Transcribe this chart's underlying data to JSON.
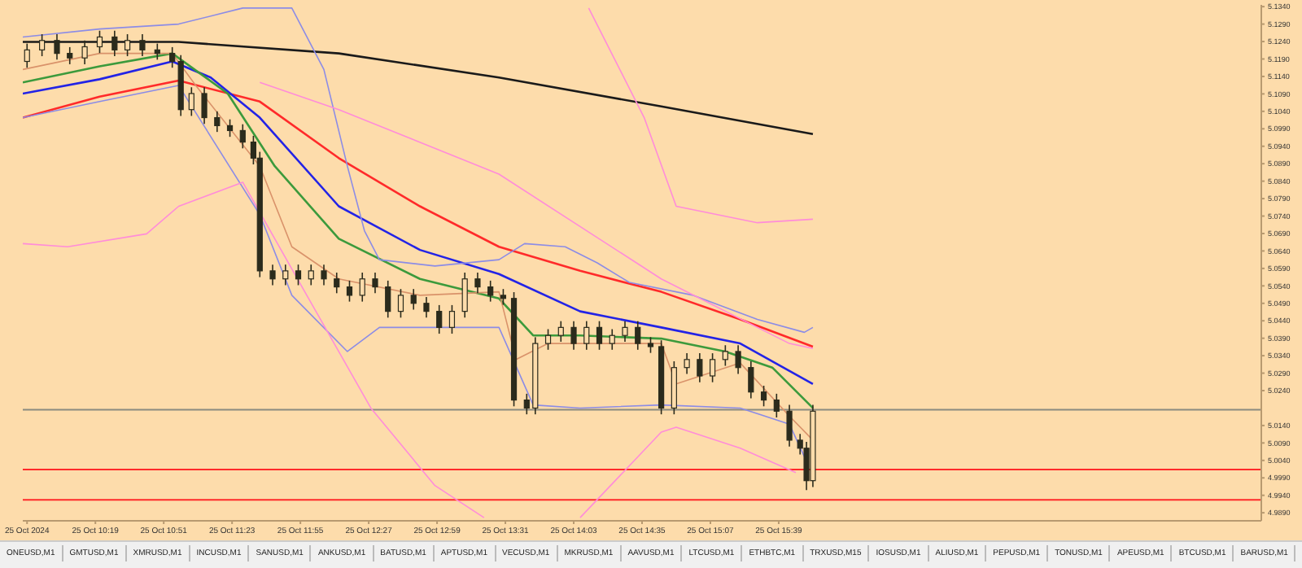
{
  "chart_data": {
    "type": "candlestick",
    "color": "#2b2b1c",
    "x": [
      "2024-10-25T09:47",
      "2024-10-25T09:54",
      "2024-10-25T10:01",
      "2024-10-25T10:07",
      "2024-10-25T10:14",
      "2024-10-25T10:21",
      "2024-10-25T10:28",
      "2024-10-25T10:34",
      "2024-10-25T10:41",
      "2024-10-25T10:48",
      "2024-10-25T10:55",
      "2024-10-25T10:59",
      "2024-10-25T11:04",
      "2024-10-25T11:10",
      "2024-10-25T11:16",
      "2024-10-25T11:22",
      "2024-10-25T11:28",
      "2024-10-25T11:33",
      "2024-10-25T11:36",
      "2024-10-25T11:42",
      "2024-10-25T11:48",
      "2024-10-25T11:54",
      "2024-10-25T12:00",
      "2024-10-25T12:06",
      "2024-10-25T12:12",
      "2024-10-25T12:18",
      "2024-10-25T12:24",
      "2024-10-25T12:30",
      "2024-10-25T12:36",
      "2024-10-25T12:42",
      "2024-10-25T12:48",
      "2024-10-25T12:54",
      "2024-10-25T13:00",
      "2024-10-25T13:06",
      "2024-10-25T13:12",
      "2024-10-25T13:18",
      "2024-10-25T13:24",
      "2024-10-25T13:30",
      "2024-10-25T13:35",
      "2024-10-25T13:41",
      "2024-10-25T13:45",
      "2024-10-25T13:51",
      "2024-10-25T13:57",
      "2024-10-25T14:03",
      "2024-10-25T14:09",
      "2024-10-25T14:15",
      "2024-10-25T14:21",
      "2024-10-25T14:27",
      "2024-10-25T14:33",
      "2024-10-25T14:39",
      "2024-10-25T14:44",
      "2024-10-25T14:50",
      "2024-10-25T14:56",
      "2024-10-25T15:02",
      "2024-10-25T15:08",
      "2024-10-25T15:14",
      "2024-10-25T15:20",
      "2024-10-25T15:26",
      "2024-10-25T15:32",
      "2024-10-25T15:38",
      "2024-10-25T15:44",
      "2024-10-25T15:49",
      "2024-10-25T15:52",
      "2024-10-25T15:55"
    ],
    "ohlc": [
      [
        5.1183,
        5.1234,
        5.1165,
        5.1216
      ],
      [
        5.1216,
        5.1261,
        5.1198,
        5.1243
      ],
      [
        5.1243,
        5.1261,
        5.1188,
        5.1206
      ],
      [
        5.1206,
        5.1224,
        5.1175,
        5.1193
      ],
      [
        5.1193,
        5.1243,
        5.1175,
        5.1225
      ],
      [
        5.1225,
        5.1271,
        5.1207,
        5.1253
      ],
      [
        5.1253,
        5.1271,
        5.1198,
        5.1216
      ],
      [
        5.1216,
        5.1261,
        5.1198,
        5.1243
      ],
      [
        5.1243,
        5.1261,
        5.1198,
        5.1216
      ],
      [
        5.1216,
        5.1234,
        5.1188,
        5.1206
      ],
      [
        5.1206,
        5.1224,
        5.1165,
        5.1183
      ],
      [
        5.1183,
        5.1201,
        5.1027,
        5.1045
      ],
      [
        5.1045,
        5.1109,
        5.1027,
        5.1091
      ],
      [
        5.1091,
        5.1109,
        5.1004,
        5.1022
      ],
      [
        5.1022,
        5.104,
        5.0981,
        5.0999
      ],
      [
        5.0999,
        5.1017,
        5.0967,
        5.0985
      ],
      [
        5.0985,
        5.1003,
        5.0934,
        5.0952
      ],
      [
        5.0952,
        5.097,
        5.0888,
        5.0906
      ],
      [
        5.0906,
        5.0924,
        5.0565,
        5.0583
      ],
      [
        5.0583,
        5.0601,
        5.0542,
        5.056
      ],
      [
        5.056,
        5.0601,
        5.0542,
        5.0583
      ],
      [
        5.0583,
        5.0601,
        5.0542,
        5.056
      ],
      [
        5.056,
        5.0601,
        5.0542,
        5.0583
      ],
      [
        5.0583,
        5.0601,
        5.0542,
        5.056
      ],
      [
        5.056,
        5.0578,
        5.0519,
        5.0537
      ],
      [
        5.0537,
        5.0555,
        5.0495,
        5.0513
      ],
      [
        5.0513,
        5.0578,
        5.0495,
        5.056
      ],
      [
        5.056,
        5.0578,
        5.0519,
        5.0537
      ],
      [
        5.0537,
        5.0555,
        5.0449,
        5.0467
      ],
      [
        5.0467,
        5.0531,
        5.0449,
        5.0513
      ],
      [
        5.0513,
        5.0531,
        5.0472,
        5.049
      ],
      [
        5.049,
        5.0508,
        5.0449,
        5.0467
      ],
      [
        5.0467,
        5.0485,
        5.0403,
        5.0421
      ],
      [
        5.0421,
        5.0485,
        5.0403,
        5.0467
      ],
      [
        5.0467,
        5.0578,
        5.0449,
        5.056
      ],
      [
        5.056,
        5.0578,
        5.0519,
        5.0537
      ],
      [
        5.0537,
        5.0555,
        5.0495,
        5.0513
      ],
      [
        5.0513,
        5.0531,
        5.0486,
        5.0504
      ],
      [
        5.0504,
        5.0522,
        5.0195,
        5.0213
      ],
      [
        5.0213,
        5.0231,
        5.0172,
        5.019
      ],
      [
        5.019,
        5.0393,
        5.0172,
        5.0375
      ],
      [
        5.0375,
        5.0416,
        5.0357,
        5.0398
      ],
      [
        5.0398,
        5.0439,
        5.038,
        5.0421
      ],
      [
        5.0421,
        5.0439,
        5.0357,
        5.0375
      ],
      [
        5.0375,
        5.0439,
        5.0357,
        5.0421
      ],
      [
        5.0421,
        5.0439,
        5.0357,
        5.0375
      ],
      [
        5.0375,
        5.0416,
        5.0357,
        5.0398
      ],
      [
        5.0398,
        5.0439,
        5.038,
        5.0421
      ],
      [
        5.0421,
        5.0439,
        5.0357,
        5.0375
      ],
      [
        5.0375,
        5.0393,
        5.0348,
        5.0366
      ],
      [
        5.0366,
        5.0384,
        5.0172,
        5.019
      ],
      [
        5.019,
        5.0324,
        5.0172,
        5.0306
      ],
      [
        5.0306,
        5.0347,
        5.0288,
        5.0329
      ],
      [
        5.0329,
        5.0347,
        5.0264,
        5.0282
      ],
      [
        5.0282,
        5.0347,
        5.0264,
        5.0329
      ],
      [
        5.0329,
        5.037,
        5.0311,
        5.0352
      ],
      [
        5.0352,
        5.037,
        5.0288,
        5.0306
      ],
      [
        5.0306,
        5.0324,
        5.0218,
        5.0236
      ],
      [
        5.0236,
        5.0254,
        5.0195,
        5.0213
      ],
      [
        5.0213,
        5.0231,
        5.0163,
        5.0181
      ],
      [
        5.0181,
        5.0199,
        5.008,
        5.0098
      ],
      [
        5.0098,
        5.0116,
        5.0057,
        5.0075
      ],
      [
        5.0075,
        5.0093,
        4.9955,
        4.9982
      ],
      [
        4.9982,
        5.0199,
        4.9964,
        5.0181
      ]
    ],
    "series": [
      {
        "type": "line",
        "color": "#1a1a1a",
        "x": [
          "2024-10-25T09:45",
          "2024-10-25T10:58",
          "2024-10-25T12:13",
          "2024-10-25T13:28",
          "2024-10-25T14:44",
          "2024-10-25T15:55"
        ],
        "values": [
          5.1239,
          5.1239,
          5.1206,
          5.1137,
          5.1054,
          5.0975
        ]
      },
      {
        "type": "line",
        "color": "#ff2a2a",
        "x": [
          "2024-10-25T09:45",
          "2024-10-25T10:21",
          "2024-10-25T10:58",
          "2024-10-25T11:36",
          "2024-10-25T12:13",
          "2024-10-25T12:51",
          "2024-10-25T13:28",
          "2024-10-25T14:06",
          "2024-10-25T14:44",
          "2024-10-25T15:21",
          "2024-10-25T15:55"
        ],
        "values": [
          5.1022,
          5.1082,
          5.1128,
          5.1068,
          5.0906,
          5.0768,
          5.0652,
          5.0583,
          5.0523,
          5.0444,
          5.0366
        ]
      },
      {
        "type": "line",
        "color": "#2323e6",
        "x": [
          "2024-10-25T09:45",
          "2024-10-25T10:21",
          "2024-10-25T10:55",
          "2024-10-25T11:13",
          "2024-10-25T11:36",
          "2024-10-25T12:13",
          "2024-10-25T12:51",
          "2024-10-25T13:28",
          "2024-10-25T14:06",
          "2024-10-25T14:44",
          "2024-10-25T15:21",
          "2024-10-25T15:55"
        ],
        "values": [
          5.1091,
          5.1132,
          5.1183,
          5.1137,
          5.1022,
          5.0768,
          5.0643,
          5.0574,
          5.0467,
          5.0421,
          5.0375,
          5.0259
        ]
      },
      {
        "type": "line",
        "color": "#3c9a3c",
        "x": [
          "2024-10-25T09:45",
          "2024-10-25T10:21",
          "2024-10-25T10:55",
          "2024-10-25T11:21",
          "2024-10-25T11:43",
          "2024-10-25T12:13",
          "2024-10-25T12:51",
          "2024-10-25T13:28",
          "2024-10-25T13:44",
          "2024-10-25T14:06",
          "2024-10-25T14:44",
          "2024-10-25T15:14",
          "2024-10-25T15:36",
          "2024-10-25T15:55"
        ],
        "values": [
          5.1123,
          5.1169,
          5.1206,
          5.1091,
          5.0883,
          5.0675,
          5.056,
          5.0504,
          5.0398,
          5.0398,
          5.0389,
          5.0352,
          5.0306,
          5.019
        ]
      },
      {
        "type": "line",
        "color": "#d9926a",
        "x": [
          "2024-10-25T09:45",
          "2024-10-25T10:21",
          "2024-10-25T10:55",
          "2024-10-25T11:06",
          "2024-10-25T11:36",
          "2024-10-25T11:51",
          "2024-10-25T12:13",
          "2024-10-25T12:51",
          "2024-10-25T13:28",
          "2024-10-25T13:36",
          "2024-10-25T13:51",
          "2024-10-25T14:44",
          "2024-10-25T14:51",
          "2024-10-25T15:21",
          "2024-10-25T15:44",
          "2024-10-25T15:55"
        ],
        "values": [
          5.116,
          5.1206,
          5.1206,
          5.1114,
          5.0883,
          5.0652,
          5.056,
          5.0513,
          5.0523,
          5.0329,
          5.0375,
          5.0375,
          5.0259,
          5.0319,
          5.0167,
          5.0098
        ]
      },
      {
        "type": "line",
        "color": "#8c8ce6",
        "x": [
          "2024-10-25T09:45",
          "2024-10-25T10:21",
          "2024-10-25T10:58",
          "2024-10-25T11:28",
          "2024-10-25T11:51",
          "2024-10-25T12:06",
          "2024-10-25T12:17",
          "2024-10-25T12:25",
          "2024-10-25T12:32",
          "2024-10-25T12:58",
          "2024-10-25T13:28",
          "2024-10-25T13:40",
          "2024-10-25T13:59",
          "2024-10-25T14:14",
          "2024-10-25T14:29",
          "2024-10-25T14:59",
          "2024-10-25T15:29",
          "2024-10-25T15:51",
          "2024-10-25T15:55"
        ],
        "values": [
          5.1253,
          5.1276,
          5.129,
          5.1336,
          5.1336,
          5.116,
          5.0883,
          5.0698,
          5.0615,
          5.0597,
          5.0615,
          5.0661,
          5.0652,
          5.0606,
          5.055,
          5.0513,
          5.0444,
          5.0407,
          5.0421
        ]
      },
      {
        "type": "line",
        "color": "#8c8ce6",
        "x": [
          "2024-10-25T09:45",
          "2024-10-25T10:21",
          "2024-10-25T10:58",
          "2024-10-25T11:36",
          "2024-10-25T11:51",
          "2024-10-25T12:17",
          "2024-10-25T12:32",
          "2024-10-25T12:51",
          "2024-10-25T13:28",
          "2024-10-25T13:44",
          "2024-10-25T14:06",
          "2024-10-25T14:44",
          "2024-10-25T15:21",
          "2024-10-25T15:44",
          "2024-10-25T15:51"
        ],
        "values": [
          5.1022,
          5.1068,
          5.1114,
          5.0744,
          5.0513,
          5.0352,
          5.0421,
          5.0421,
          5.0421,
          5.0199,
          5.019,
          5.0199,
          5.019,
          5.0144,
          5.0051
        ]
      },
      {
        "type": "line",
        "color": "#ff8cd9",
        "x": [
          "2024-10-25T11:36",
          "2024-10-25T12:13",
          "2024-10-25T13:28",
          "2024-10-25T14:44",
          "2024-10-25T15:44",
          "2024-10-25T15:55"
        ],
        "values": [
          5.1123,
          5.1045,
          5.086,
          5.056,
          5.0375,
          5.0361
        ]
      },
      {
        "type": "line",
        "color": "#ff8cd9",
        "x": [
          "2024-10-25T09:45",
          "2024-10-25T10:06",
          "2024-10-25T10:43",
          "2024-10-25T10:58",
          "2024-10-25T11:28",
          "2024-10-25T11:58",
          "2024-10-25T12:28",
          "2024-10-25T12:58",
          "2024-10-25T13:21"
        ],
        "values": [
          5.0661,
          5.0652,
          5.0689,
          5.0768,
          5.0837,
          5.0513,
          5.019,
          4.9968,
          4.9876
        ]
      },
      {
        "type": "line",
        "color": "#ff8cd9",
        "x": [
          "2024-10-25T14:10",
          "2024-10-25T14:36",
          "2024-10-25T14:51",
          "2024-10-25T15:29",
          "2024-10-25T15:55"
        ],
        "values": [
          5.1336,
          5.1022,
          5.0768,
          5.0721,
          5.0731
        ]
      },
      {
        "type": "line",
        "color": "#ff8cd9",
        "x": [
          "2024-10-25T14:06",
          "2024-10-25T14:44",
          "2024-10-25T14:51",
          "2024-10-25T15:21",
          "2024-10-25T15:47"
        ],
        "values": [
          4.9876,
          5.0121,
          5.0135,
          5.0075,
          5.0005
        ]
      }
    ],
    "ref_lines": [
      {
        "axis": "y",
        "value": 5.0185,
        "color": "#8a8a80"
      },
      {
        "axis": "y",
        "value": 5.0014,
        "color": "#ff2a2a"
      },
      {
        "axis": "y",
        "value": 4.9927,
        "color": "#ff2a2a"
      }
    ],
    "xlim": [
      "2024-10-25T09:45",
      "2024-10-25T19:25"
    ],
    "xticks": [
      {
        "value": "2024-10-25T09:47",
        "label": "25 Oct 2024"
      },
      {
        "value": "2024-10-25T10:19",
        "label": "25 Oct 10:19"
      },
      {
        "value": "2024-10-25T10:51",
        "label": "25 Oct 10:51"
      },
      {
        "value": "2024-10-25T11:23",
        "label": "25 Oct 11:23"
      },
      {
        "value": "2024-10-25T11:55",
        "label": "25 Oct 11:55"
      },
      {
        "value": "2024-10-25T12:27",
        "label": "25 Oct 12:27"
      },
      {
        "value": "2024-10-25T12:59",
        "label": "25 Oct 12:59"
      },
      {
        "value": "2024-10-25T13:31",
        "label": "25 Oct 13:31"
      },
      {
        "value": "2024-10-25T14:03",
        "label": "25 Oct 14:03"
      },
      {
        "value": "2024-10-25T14:35",
        "label": "25 Oct 14:35"
      },
      {
        "value": "2024-10-25T15:07",
        "label": "25 Oct 15:07"
      },
      {
        "value": "2024-10-25T15:39",
        "label": "25 Oct 15:39"
      }
    ],
    "ylim": [
      4.9867,
      5.1345
    ],
    "yticks": [
      {
        "value": 4.989,
        "label": "4.9890"
      },
      {
        "value": 4.994,
        "label": "4.9940"
      },
      {
        "value": 4.999,
        "label": "4.9990"
      },
      {
        "value": 5.004,
        "label": "5.0040"
      },
      {
        "value": 5.009,
        "label": "5.0090"
      },
      {
        "value": 5.014,
        "label": "5.0140"
      },
      {
        "value": 5.024,
        "label": "5.0240"
      },
      {
        "value": 5.029,
        "label": "5.0290"
      },
      {
        "value": 5.034,
        "label": "5.0340"
      },
      {
        "value": 5.039,
        "label": "5.0390"
      },
      {
        "value": 5.044,
        "label": "5.0440"
      },
      {
        "value": 5.049,
        "label": "5.0490"
      },
      {
        "value": 5.054,
        "label": "5.0540"
      },
      {
        "value": 5.059,
        "label": "5.0590"
      },
      {
        "value": 5.064,
        "label": "5.0640"
      },
      {
        "value": 5.069,
        "label": "5.0690"
      },
      {
        "value": 5.074,
        "label": "5.0740"
      },
      {
        "value": 5.079,
        "label": "5.0790"
      },
      {
        "value": 5.084,
        "label": "5.0840"
      },
      {
        "value": 5.089,
        "label": "5.0890"
      },
      {
        "value": 5.094,
        "label": "5.0940"
      },
      {
        "value": 5.099,
        "label": "5.0990"
      },
      {
        "value": 5.104,
        "label": "5.1040"
      },
      {
        "value": 5.109,
        "label": "5.1090"
      },
      {
        "value": 5.114,
        "label": "5.1140"
      },
      {
        "value": 5.119,
        "label": "5.1190"
      },
      {
        "value": 5.124,
        "label": "5.1240"
      },
      {
        "value": 5.129,
        "label": "5.1290"
      },
      {
        "value": 5.134,
        "label": "5.1340"
      }
    ],
    "annotations": [
      "ONEUSD,M1",
      "GMTUSD,M1",
      "XMRUSD,M1",
      "INCUSD,M1",
      "SANUSD,M1",
      "ANKUSD,M1",
      "BATUSD,M1",
      "APTUSD,M1",
      "VECUSD,M1",
      "MKRUSD,M1",
      "AAVUSD,M1",
      "LTCUSD,M1",
      "ETHBTC,M1",
      "TRXUSD,M15",
      "IOSUSD,M1",
      "ALIUSD,M1",
      "PEPUSD,M1",
      "TONUSD,M1",
      "APEUSD,M1",
      "BTCUSD,M1",
      "BARUSD,M1"
    ]
  }
}
